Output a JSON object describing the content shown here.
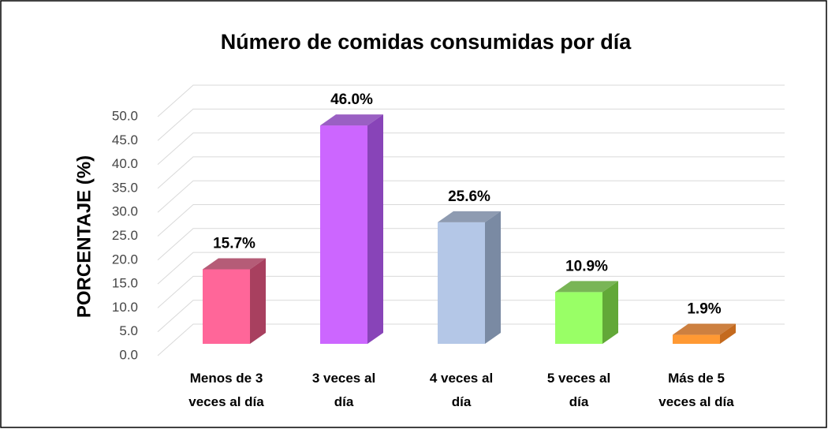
{
  "chart_data": {
    "type": "bar3d",
    "title": "Número de comidas consumidas por día",
    "ylabel": "PORCENTAJE (%)",
    "categories": [
      "Menos de 3\nveces al día",
      "3 veces al\ndía",
      "4 veces al\ndía",
      "5 veces al\ndía",
      "Más de 5\nveces al día"
    ],
    "values": [
      15.7,
      46.0,
      25.6,
      10.9,
      1.9
    ],
    "value_labels": [
      "15.7%",
      "46.0%",
      "25.6%",
      "10.9%",
      "1.9%"
    ],
    "colors": [
      "#ff6699",
      "#cc66ff",
      "#b4c7e7",
      "#99ff66",
      "#ff9933"
    ],
    "side_colors": [
      "#a8405f",
      "#8844b8",
      "#7a8aa3",
      "#62a838",
      "#c46a1e"
    ],
    "ylim": [
      0,
      50
    ],
    "yticks": [
      {
        "value": 0,
        "label": "0.0"
      },
      {
        "value": 5,
        "label": "5.0"
      },
      {
        "value": 10,
        "label": "10.0"
      },
      {
        "value": 15,
        "label": "15.0"
      },
      {
        "value": 20,
        "label": "20.0"
      },
      {
        "value": 25,
        "label": "25.0"
      },
      {
        "value": 30,
        "label": "30.0"
      },
      {
        "value": 35,
        "label": "35.0"
      },
      {
        "value": 40,
        "label": "40.0"
      },
      {
        "value": 45,
        "label": "45.0"
      },
      {
        "value": 50,
        "label": "50.0"
      }
    ],
    "grid": true
  }
}
